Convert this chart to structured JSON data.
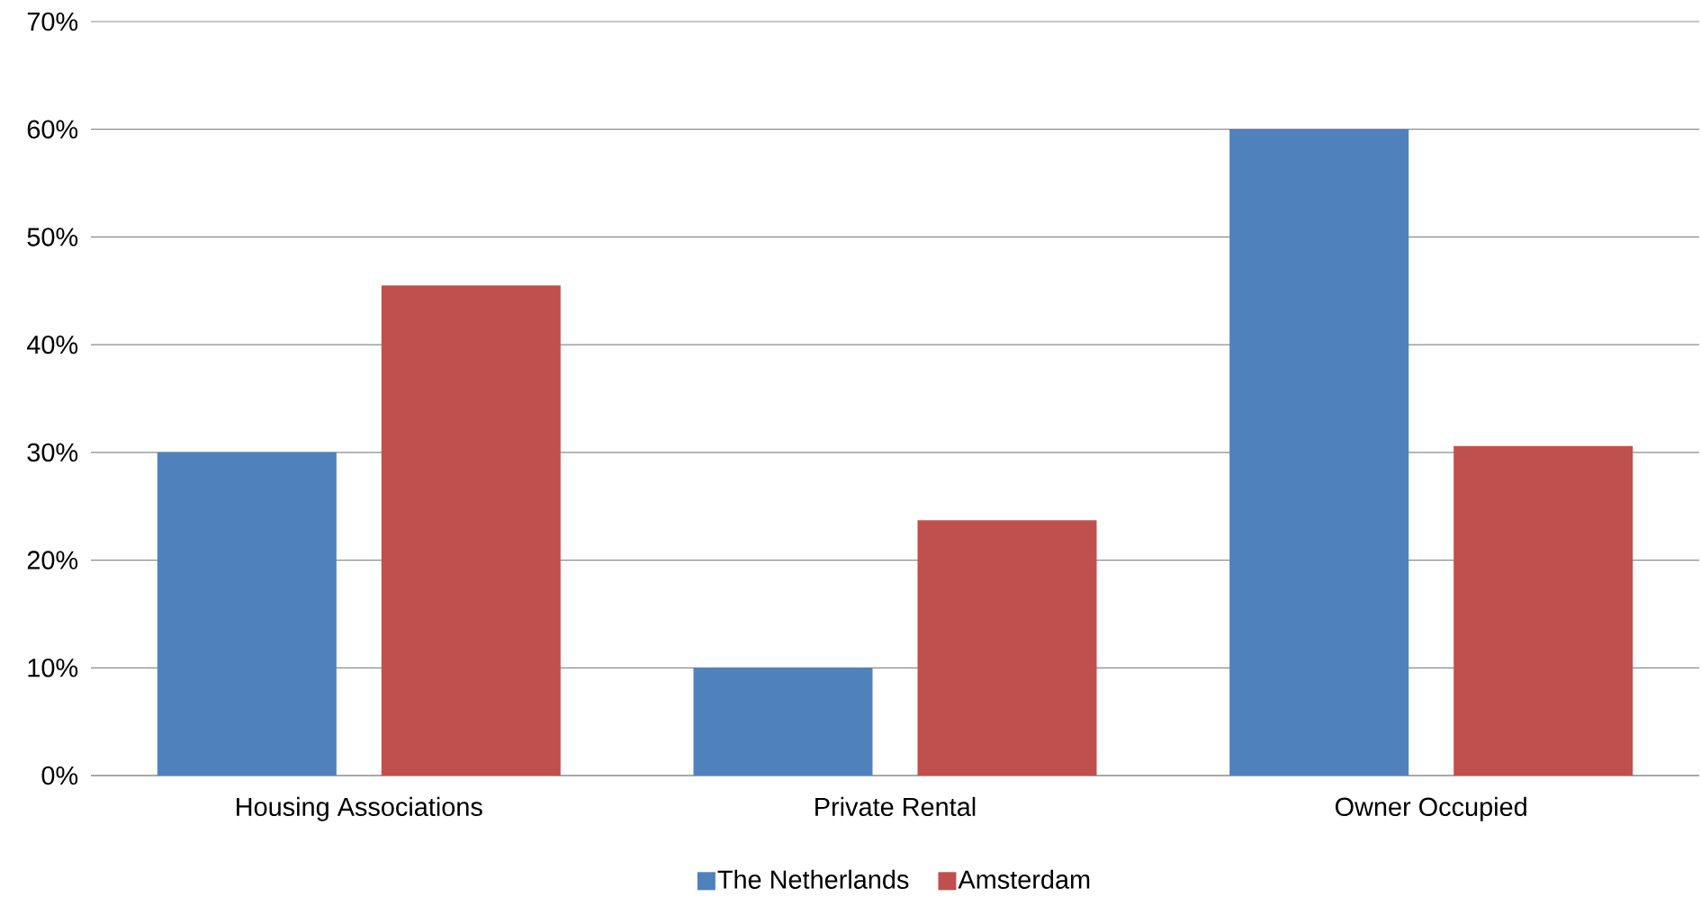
{
  "chart_data": {
    "type": "bar",
    "categories": [
      "Housing Associations",
      "Private Rental",
      "Owner Occupied"
    ],
    "series": [
      {
        "name": "The Netherlands",
        "color": "#4f81bd",
        "values": [
          30,
          10,
          60
        ]
      },
      {
        "name": "Amsterdam",
        "color": "#c0504d",
        "values": [
          45.5,
          23.7,
          30.6
        ]
      }
    ],
    "ylim": [
      0,
      70
    ],
    "yticks": [
      {
        "value": 0,
        "label": "0%"
      },
      {
        "value": 10,
        "label": "10%"
      },
      {
        "value": 20,
        "label": "20%"
      },
      {
        "value": 30,
        "label": "30%"
      },
      {
        "value": 40,
        "label": "40%"
      },
      {
        "value": 50,
        "label": "50%"
      },
      {
        "value": 60,
        "label": "60%"
      },
      {
        "value": 70,
        "label": "70%"
      }
    ],
    "grid": "y",
    "legend": "bottom"
  }
}
